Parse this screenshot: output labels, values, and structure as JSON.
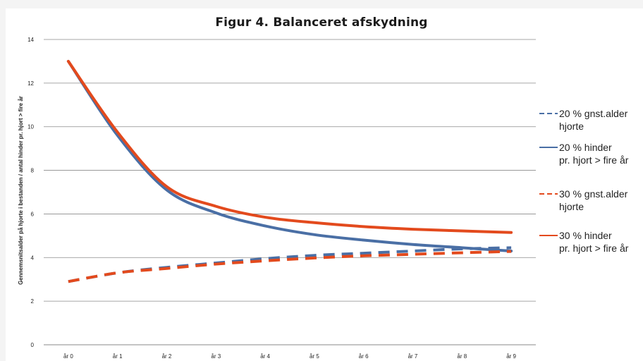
{
  "chart_data": {
    "type": "line",
    "title": "Figur 4. Balanceret afskydning",
    "xlabel": "",
    "ylabel": "Gennemsnitsalder på hjorte i bestanden / antal hinder pr. hjort > fire år",
    "categories": [
      "år 0",
      "år 1",
      "år 2",
      "år 3",
      "år 4",
      "år 5",
      "år 6",
      "år 7",
      "år 8",
      "år 9"
    ],
    "ylim": [
      0,
      14
    ],
    "yticks": [
      0,
      2,
      4,
      6,
      8,
      10,
      12,
      14
    ],
    "grid": true,
    "legend_position": "right",
    "series": [
      {
        "name": "20 % gnst.alder hjorte",
        "legend_lines": [
          "20 % gnst.alder",
          "hjorte"
        ],
        "style": "dashed",
        "color": "#4a6fa5",
        "values": [
          2.9,
          3.3,
          3.55,
          3.75,
          3.95,
          4.1,
          4.2,
          4.3,
          4.4,
          4.45
        ]
      },
      {
        "name": "20 % hinder pr. hjort > fire år",
        "legend_lines": [
          "20 % hinder",
          "pr. hjort > fire år"
        ],
        "style": "solid",
        "color": "#4a6fa5",
        "values": [
          13.0,
          9.6,
          7.1,
          6.05,
          5.45,
          5.05,
          4.8,
          4.6,
          4.45,
          4.3
        ]
      },
      {
        "name": "30 % gnst.alder hjorte",
        "legend_lines": [
          "30 % gnst.alder",
          "hjorte"
        ],
        "style": "dashed",
        "color": "#e34a1d",
        "values": [
          2.9,
          3.3,
          3.5,
          3.7,
          3.85,
          3.98,
          4.08,
          4.15,
          4.22,
          4.28
        ]
      },
      {
        "name": "30 % hinder pr. hjort > fire år",
        "legend_lines": [
          "30 % hinder",
          "pr. hjort > fire år"
        ],
        "style": "solid",
        "color": "#e34a1d",
        "values": [
          13.0,
          9.75,
          7.25,
          6.35,
          5.85,
          5.6,
          5.42,
          5.3,
          5.22,
          5.15
        ]
      }
    ]
  }
}
